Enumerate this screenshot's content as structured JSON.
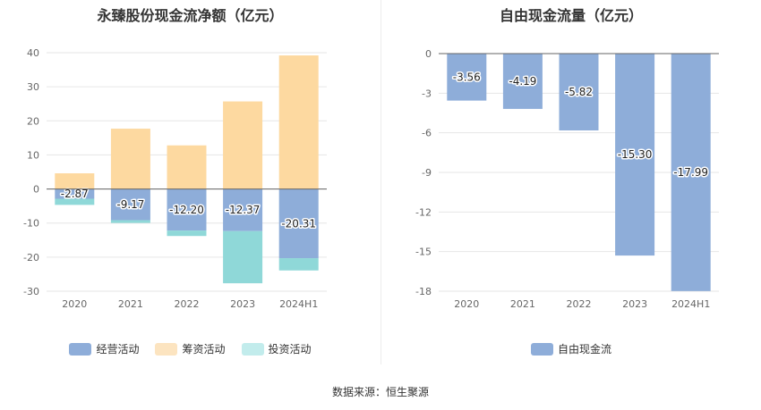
{
  "source": "数据来源：恒生聚源",
  "chart_data": [
    {
      "type": "bar",
      "stacked": true,
      "title": "永臻股份现金流净额（亿元）",
      "categories": [
        "2020",
        "2021",
        "2022",
        "2023",
        "2024H1"
      ],
      "ylim": [
        -30,
        40
      ],
      "yticks": [
        -30,
        -20,
        -10,
        0,
        10,
        20,
        30,
        40
      ],
      "grid": true,
      "legend_position": "bottom",
      "series": [
        {
          "name": "经营活动",
          "color": "#8eadd9",
          "values": [
            -2.87,
            -9.17,
            -12.2,
            -12.37,
            -20.31
          ]
        },
        {
          "name": "筹资活动",
          "color": "#fdd9a0",
          "values": [
            4.6,
            17.7,
            12.8,
            25.7,
            39.2
          ]
        },
        {
          "name": "投资活动",
          "color": "#8fd8d8",
          "values": [
            -1.8,
            -0.8,
            -1.6,
            -15.3,
            -3.6
          ]
        }
      ],
      "data_labels": [
        "-2.87",
        "-9.17",
        "-12.20",
        "-12.37",
        "-20.31"
      ]
    },
    {
      "type": "bar",
      "title": "自由现金流量（亿元）",
      "categories": [
        "2020",
        "2021",
        "2022",
        "2023",
        "2024H1"
      ],
      "ylim": [
        -18,
        0
      ],
      "yticks": [
        -18,
        -15,
        -12,
        -9,
        -6,
        -3,
        0
      ],
      "grid": true,
      "legend_position": "bottom",
      "series": [
        {
          "name": "自由现金流",
          "color": "#8eadd9",
          "values": [
            -3.56,
            -4.19,
            -5.82,
            -15.3,
            -17.99
          ]
        }
      ],
      "data_labels": [
        "-3.56",
        "-4.19",
        "-5.82",
        "-15.30",
        "-17.99"
      ]
    }
  ]
}
